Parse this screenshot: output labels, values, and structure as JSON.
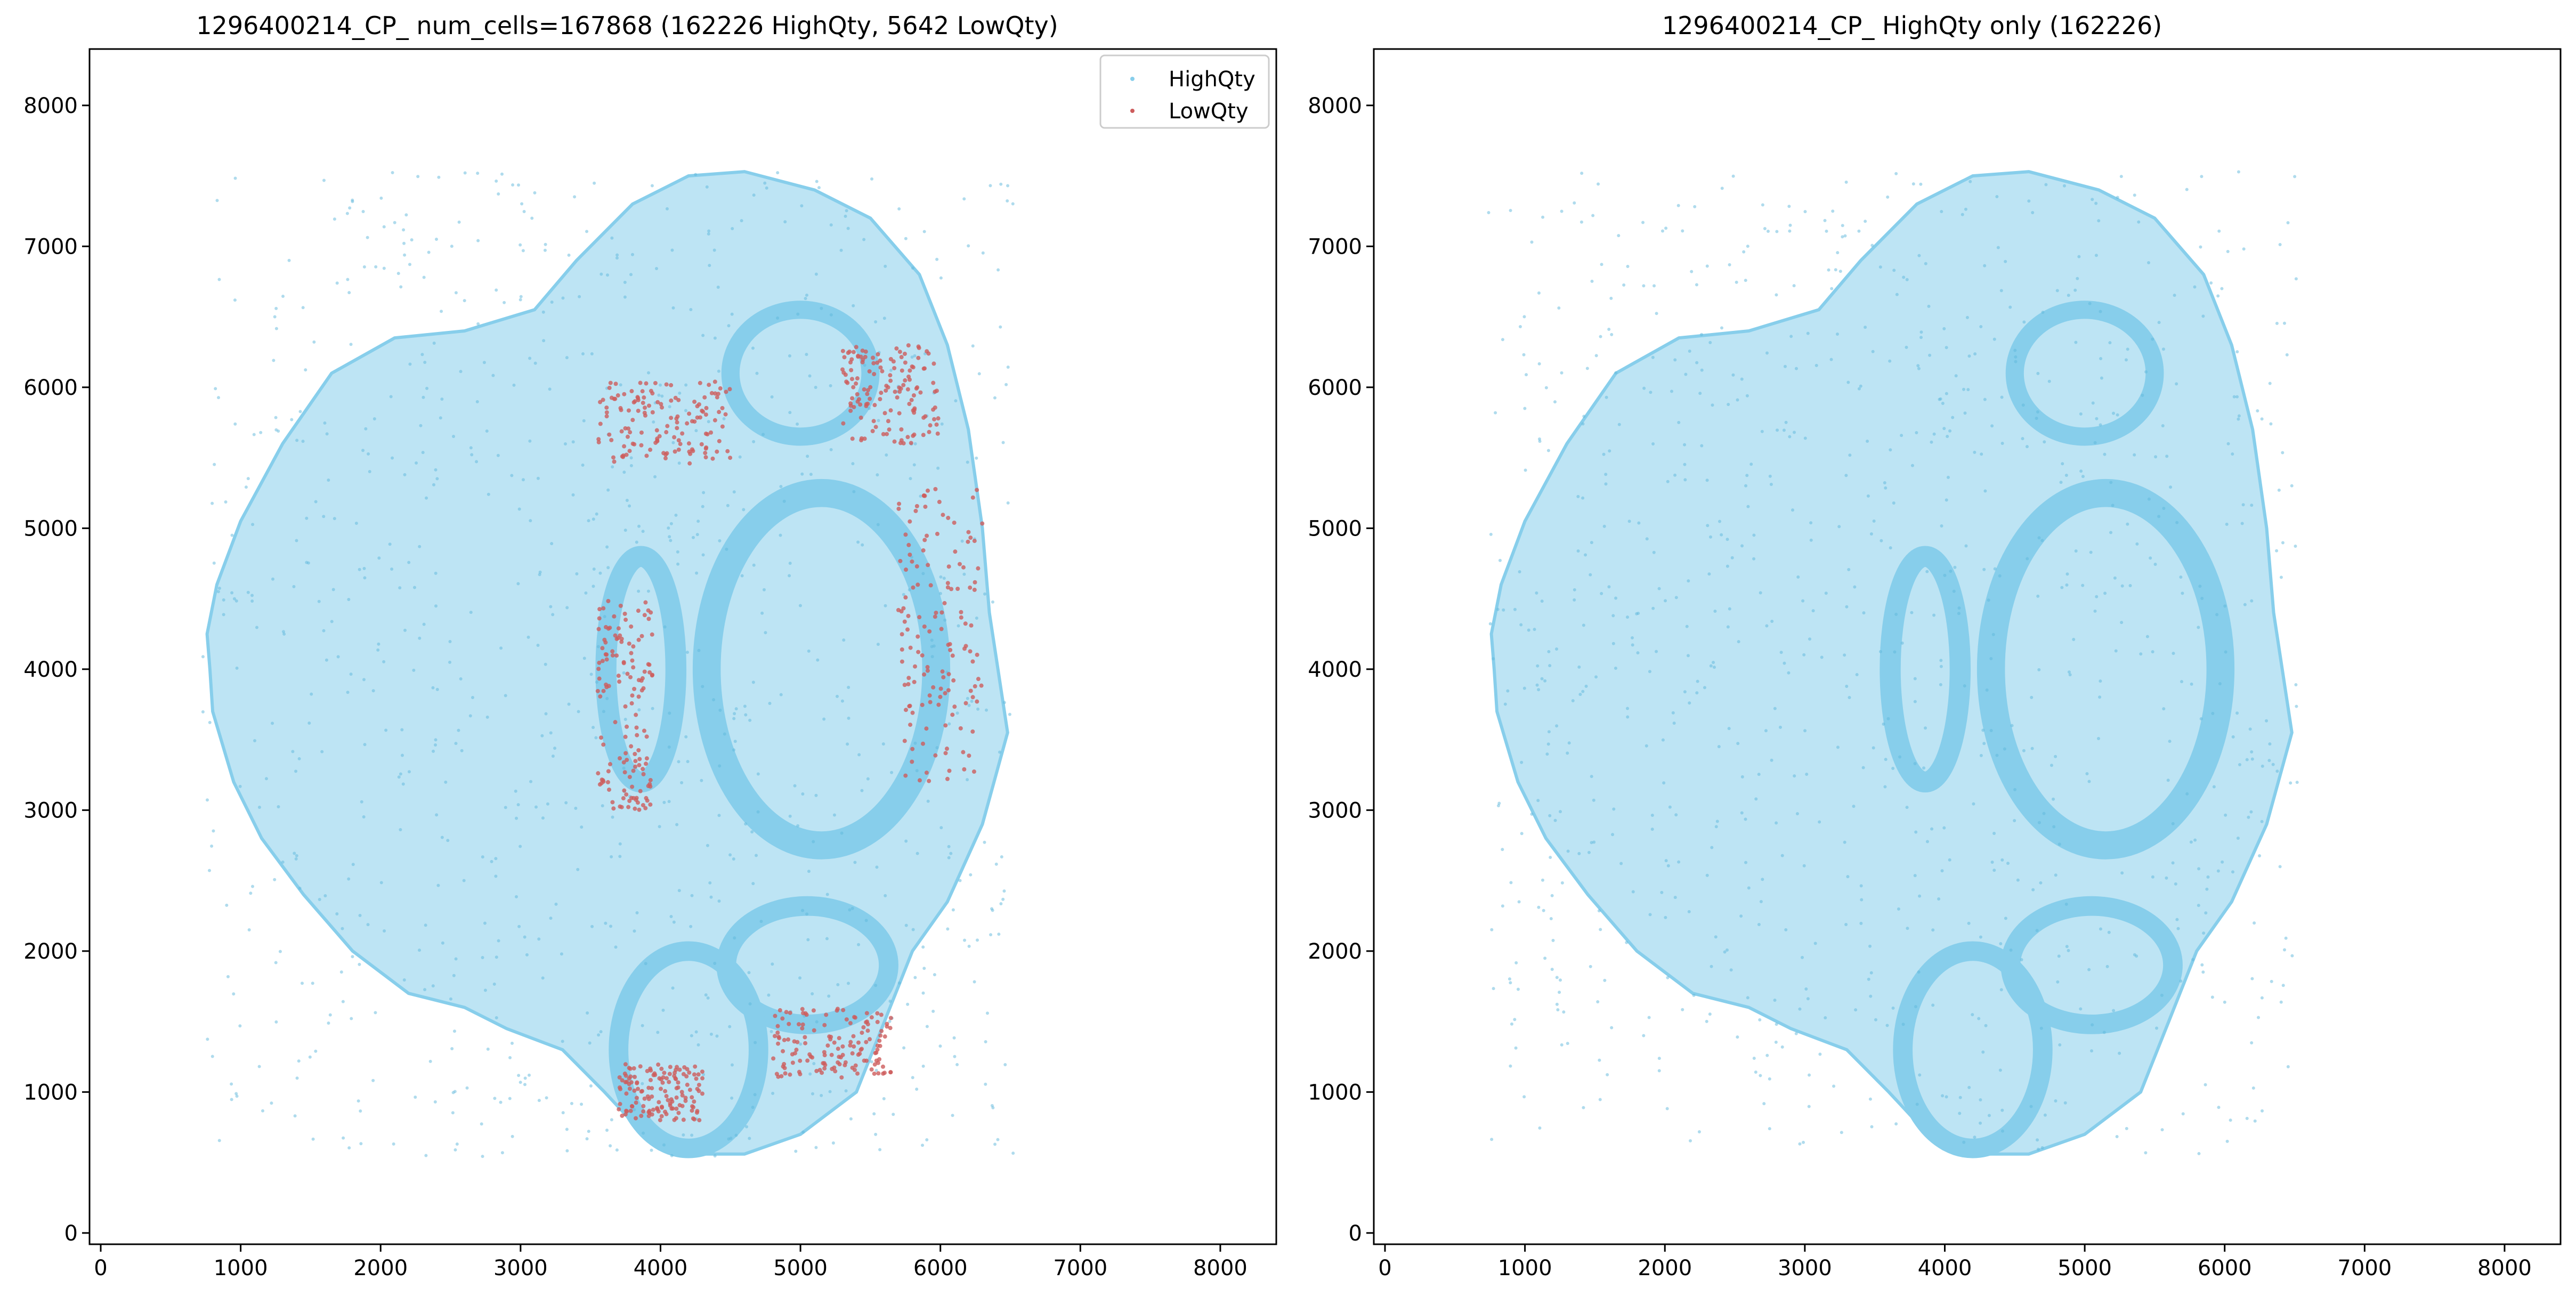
{
  "chart_data": [
    {
      "type": "scatter",
      "title": "1296400214_CP_ num_cells=167868 (162226 HighQty, 5642 LowQty)",
      "xlabel": "",
      "ylabel": "",
      "xlim": [
        -80,
        8400
      ],
      "ylim": [
        -80,
        8400
      ],
      "x_ticks": [
        0,
        1000,
        2000,
        3000,
        4000,
        5000,
        6000,
        7000,
        8000
      ],
      "y_ticks": [
        0,
        1000,
        2000,
        3000,
        4000,
        5000,
        6000,
        7000,
        8000
      ],
      "grid": false,
      "legend": {
        "placement": "top-right",
        "entries": [
          "HighQty",
          "LowQty"
        ]
      },
      "series": [
        {
          "name": "HighQty",
          "color": "#87ceeb",
          "count": 162226,
          "extent": {
            "x": [
              730,
              6520
            ],
            "y": [
              540,
              7530
            ]
          }
        },
        {
          "name": "LowQty",
          "color": "#cd5c5c",
          "count": 5642,
          "regions": [
            {
              "x": [
                3550,
                4500
              ],
              "y": [
                5450,
                6050
              ]
            },
            {
              "x": [
                5300,
                6000
              ],
              "y": [
                5600,
                6300
              ]
            },
            {
              "x": [
                5700,
                6300
              ],
              "y": [
                3200,
                5300
              ]
            },
            {
              "x": [
                3550,
                3950
              ],
              "y": [
                3000,
                4500
              ]
            },
            {
              "x": [
                4800,
                5650
              ],
              "y": [
                1100,
                1600
              ]
            },
            {
              "x": [
                3700,
                4300
              ],
              "y": [
                800,
                1200
              ]
            }
          ]
        }
      ]
    },
    {
      "type": "scatter",
      "title": "1296400214_CP_ HighQty only (162226)",
      "xlabel": "",
      "ylabel": "",
      "xlim": [
        -80,
        8400
      ],
      "ylim": [
        -80,
        8400
      ],
      "x_ticks": [
        0,
        1000,
        2000,
        3000,
        4000,
        5000,
        6000,
        7000,
        8000
      ],
      "y_ticks": [
        0,
        1000,
        2000,
        3000,
        4000,
        5000,
        6000,
        7000,
        8000
      ],
      "grid": false,
      "series": [
        {
          "name": "HighQty",
          "color": "#87ceeb",
          "count": 162226,
          "extent": {
            "x": [
              730,
              6520
            ],
            "y": [
              540,
              7530
            ]
          }
        }
      ]
    }
  ]
}
